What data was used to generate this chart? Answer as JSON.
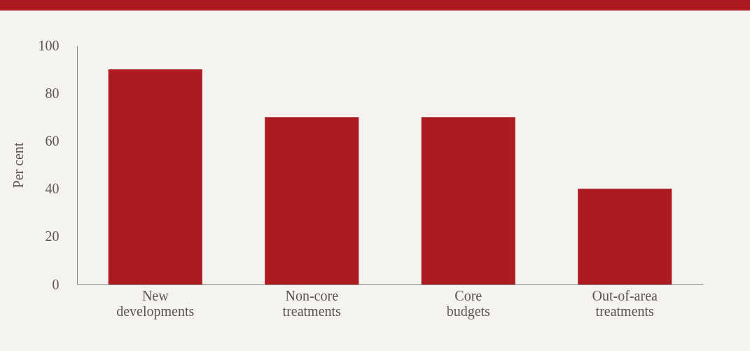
{
  "chart_data": {
    "type": "bar",
    "ylabel": "Per cent",
    "categories": [
      "New developments",
      "Non-core treatments",
      "Core budgets",
      "Out-of-area treatments"
    ],
    "values": [
      90,
      70,
      70,
      40
    ],
    "color": "#ad1a20",
    "ylim": [
      0,
      100
    ],
    "yticks": [
      0,
      20,
      40,
      60,
      80,
      100
    ],
    "grid": false
  }
}
